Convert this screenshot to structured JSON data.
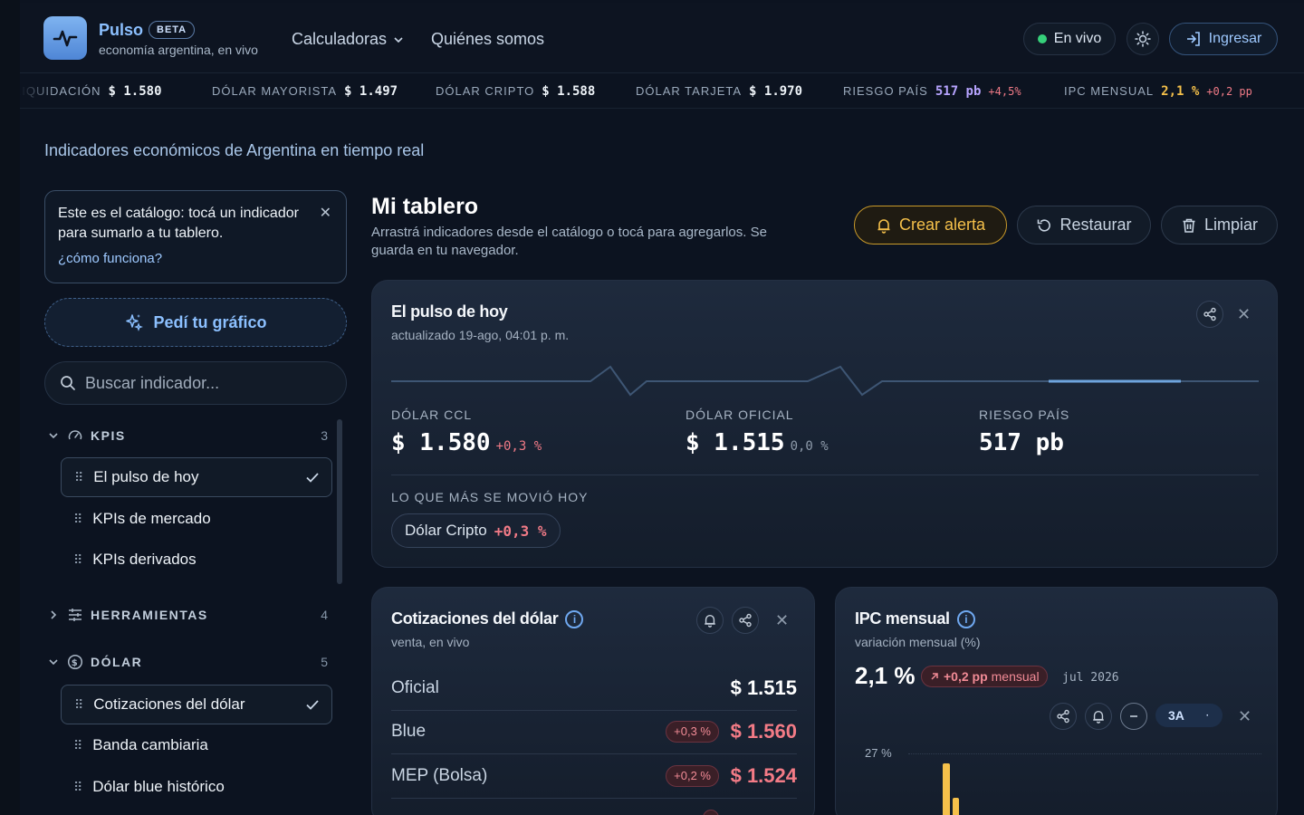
{
  "header": {
    "brand": "Pulso",
    "badge": "BETA",
    "tagline": "economía argentina, en vivo",
    "nav": [
      {
        "label": "Calculadoras"
      },
      {
        "label": "Quiénes somos"
      }
    ],
    "live_label": "En vivo",
    "login_label": "Ingresar"
  },
  "ticker": [
    {
      "label": "LIQUIDACIÓN",
      "value": "$ 1.580",
      "change": ""
    },
    {
      "label": "DÓLAR MAYORISTA",
      "value": "$ 1.497",
      "change": ""
    },
    {
      "label": "DÓLAR CRIPTO",
      "value": "$ 1.588",
      "change": ""
    },
    {
      "label": "DÓLAR TARJETA",
      "value": "$ 1.970",
      "change": ""
    },
    {
      "label": "RIESGO PAÍS",
      "value": "517 pb",
      "change": "+4,5%"
    },
    {
      "label": "IPC MENSUAL",
      "value": "2,1 %",
      "change": "+0,2 pp"
    }
  ],
  "page": {
    "subtitle": "Indicadores económicos de Argentina en tiempo real"
  },
  "sidebar": {
    "tip_text": "Este es el catálogo: tocá un indicador para sumarlo a tu tablero.",
    "tip_link": "¿cómo funciona?",
    "ask_chart_label": "Pedí tu gráfico",
    "search_placeholder": "Buscar indicador...",
    "sections": [
      {
        "title": "KPIS",
        "count": "3",
        "items": [
          {
            "label": "El pulso de hoy",
            "active": true
          },
          {
            "label": "KPIs de mercado",
            "active": false
          },
          {
            "label": "KPIs derivados",
            "active": false
          }
        ]
      },
      {
        "title": "HERRAMIENTAS",
        "count": "4",
        "items": []
      },
      {
        "title": "DÓLAR",
        "count": "5",
        "items": [
          {
            "label": "Cotizaciones del dólar",
            "active": true
          },
          {
            "label": "Banda cambiaria",
            "active": false
          },
          {
            "label": "Dólar blue histórico",
            "active": false
          }
        ]
      }
    ]
  },
  "dashboard": {
    "title": "Mi tablero",
    "description": "Arrastrá indicadores desde el catálogo o tocá para agregarlos. Se guarda en tu navegador.",
    "actions": {
      "alert": "Crear alerta",
      "reset": "Restaurar",
      "clear": "Limpiar"
    }
  },
  "pulse_card": {
    "title": "El pulso de hoy",
    "updated": "actualizado 19-ago, 04:01 p. m.",
    "kpis": [
      {
        "label": "DÓLAR CCL",
        "value": "$ 1.580",
        "change": "+0,3 %",
        "color": "#f07a86"
      },
      {
        "label": "DÓLAR OFICIAL",
        "value": "$ 1.515",
        "change": "0,0 %",
        "color": "#8e9bab"
      },
      {
        "label": "RIESGO PAÍS",
        "value": "517 pb",
        "change": "",
        "color": "#8e9bab"
      }
    ],
    "moved_label": "LO QUE MÁS SE MOVIÓ HOY",
    "moved_name": "Dólar Cripto",
    "moved_change": "+0,3 %"
  },
  "dollar_card": {
    "title": "Cotizaciones del dólar",
    "subtitle": "venta, en vivo",
    "rows": [
      {
        "name": "Oficial",
        "change": "",
        "value": "$ 1.515",
        "up": false
      },
      {
        "name": "Blue",
        "change": "+0,3 %",
        "value": "$ 1.560",
        "up": true
      },
      {
        "name": "MEP (Bolsa)",
        "change": "+0,2 %",
        "value": "$ 1.524",
        "up": true
      }
    ]
  },
  "ipc_card": {
    "title": "IPC mensual",
    "subtitle": "variación mensual (%)",
    "value": "2,1 %",
    "change": "+0,2 pp",
    "change_unit": "mensual",
    "date": "jul 2026",
    "range": "3A",
    "y_tick": "27 %"
  },
  "colors": {
    "accent": "#8cc0ff",
    "alert": "#f5c04a",
    "negative": "#f07a86",
    "live": "#36d07a"
  }
}
